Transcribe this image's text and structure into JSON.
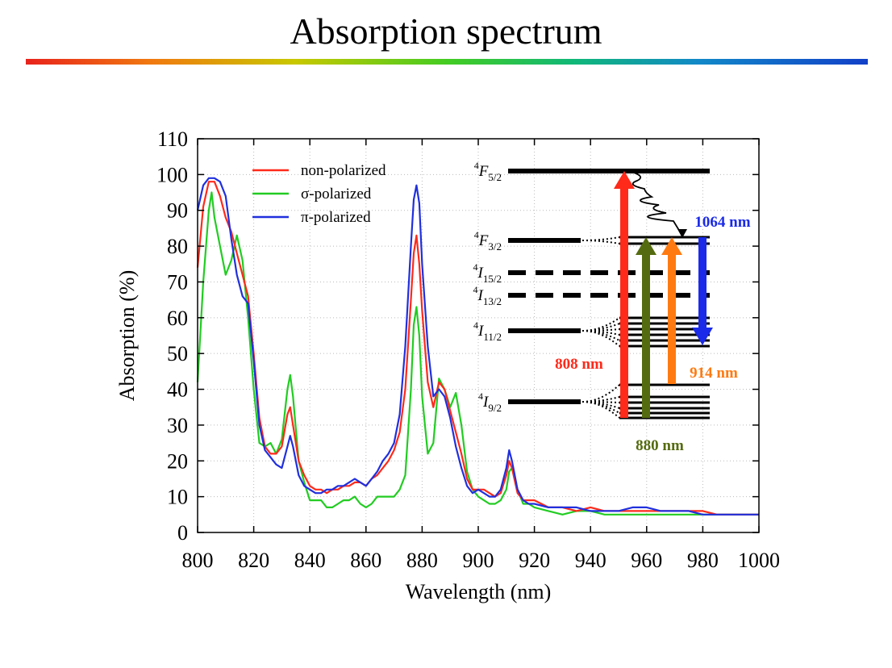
{
  "slide": {
    "title": "Absorption spectrum",
    "accent_colors": [
      "#e8231c",
      "#f07a10",
      "#44cc22",
      "#1288c8",
      "#1240c8"
    ]
  },
  "chart_data": {
    "type": "line",
    "xlabel": "Wavelength (nm)",
    "ylabel": "Absorption (%)",
    "xlim": [
      800,
      1000
    ],
    "ylim": [
      0,
      110
    ],
    "xticks": [
      800,
      820,
      840,
      860,
      880,
      900,
      920,
      940,
      960,
      980,
      1000
    ],
    "yticks": [
      0,
      10,
      20,
      30,
      40,
      50,
      60,
      70,
      80,
      90,
      100,
      110
    ],
    "grid": true,
    "legend_position": "top-left",
    "series": [
      {
        "name": "non-polarized",
        "color": "#ff2a1a",
        "x": [
          800,
          802,
          804,
          806,
          808,
          810,
          812,
          814,
          816,
          818,
          820,
          822,
          824,
          826,
          828,
          830,
          832,
          833,
          834,
          836,
          838,
          840,
          842,
          844,
          846,
          848,
          850,
          852,
          854,
          856,
          858,
          860,
          862,
          864,
          866,
          868,
          870,
          872,
          874,
          876,
          877,
          878,
          879,
          880,
          882,
          884,
          886,
          888,
          890,
          892,
          894,
          896,
          898,
          900,
          902,
          904,
          906,
          908,
          910,
          911,
          912,
          914,
          916,
          918,
          920,
          925,
          930,
          935,
          940,
          945,
          950,
          955,
          960,
          965,
          970,
          975,
          980,
          985,
          990,
          995,
          1000
        ],
        "y": [
          74,
          91,
          98,
          98,
          94,
          88,
          84,
          78,
          72,
          66,
          50,
          32,
          24,
          22,
          22,
          24,
          33,
          35,
          30,
          20,
          16,
          13,
          12,
          12,
          11,
          12,
          12,
          13,
          13,
          14,
          14,
          13,
          15,
          16,
          18,
          20,
          23,
          28,
          40,
          65,
          78,
          83,
          75,
          62,
          42,
          35,
          42,
          40,
          34,
          28,
          22,
          15,
          12,
          12,
          12,
          11,
          10,
          11,
          16,
          20,
          18,
          11,
          9,
          9,
          9,
          7,
          7,
          6,
          7,
          6,
          6,
          6,
          6,
          6,
          6,
          6,
          6,
          5,
          5,
          5,
          5
        ]
      },
      {
        "name": "σ-polarized",
        "color": "#22cc22",
        "x": [
          800,
          802,
          804,
          805,
          806,
          808,
          810,
          812,
          814,
          816,
          818,
          820,
          822,
          824,
          826,
          828,
          830,
          832,
          833,
          834,
          836,
          838,
          840,
          842,
          844,
          846,
          848,
          850,
          852,
          854,
          856,
          858,
          860,
          862,
          864,
          866,
          868,
          870,
          872,
          874,
          876,
          877,
          878,
          879,
          880,
          882,
          884,
          886,
          888,
          890,
          892,
          894,
          896,
          898,
          900,
          902,
          904,
          906,
          908,
          910,
          911,
          912,
          914,
          916,
          918,
          920,
          925,
          930,
          935,
          940,
          945,
          950,
          955,
          960,
          965,
          970,
          975,
          980,
          985,
          990,
          995,
          1000
        ],
        "y": [
          42,
          70,
          90,
          95,
          88,
          80,
          72,
          76,
          83,
          76,
          60,
          40,
          25,
          24,
          25,
          22,
          26,
          40,
          44,
          38,
          20,
          14,
          9,
          9,
          9,
          7,
          7,
          8,
          9,
          9,
          10,
          8,
          7,
          8,
          10,
          10,
          10,
          10,
          12,
          16,
          40,
          58,
          63,
          55,
          38,
          22,
          25,
          43,
          40,
          35,
          39,
          30,
          17,
          12,
          10,
          9,
          8,
          8,
          9,
          12,
          17,
          18,
          12,
          8,
          8,
          7,
          6,
          5,
          6,
          6,
          5,
          5,
          5,
          5,
          5,
          5,
          5,
          5,
          5,
          5,
          5,
          5
        ]
      },
      {
        "name": "π-polarized",
        "color": "#2030dd",
        "x": [
          800,
          802,
          804,
          806,
          808,
          810,
          812,
          814,
          816,
          818,
          820,
          822,
          824,
          826,
          828,
          830,
          832,
          833,
          834,
          836,
          838,
          840,
          842,
          844,
          846,
          848,
          850,
          852,
          854,
          856,
          858,
          860,
          862,
          864,
          866,
          868,
          870,
          872,
          874,
          876,
          877,
          878,
          879,
          880,
          882,
          884,
          886,
          888,
          890,
          892,
          894,
          896,
          898,
          900,
          902,
          904,
          906,
          908,
          910,
          911,
          912,
          914,
          916,
          918,
          920,
          925,
          930,
          935,
          940,
          945,
          950,
          955,
          960,
          965,
          970,
          975,
          980,
          985,
          990,
          995,
          1000
        ],
        "y": [
          90,
          97,
          99,
          99,
          98,
          94,
          82,
          72,
          66,
          64,
          48,
          30,
          23,
          21,
          19,
          18,
          24,
          27,
          24,
          16,
          13,
          12,
          11,
          11,
          12,
          12,
          13,
          13,
          14,
          15,
          14,
          13,
          15,
          17,
          20,
          22,
          25,
          33,
          52,
          80,
          93,
          97,
          92,
          75,
          52,
          38,
          40,
          38,
          32,
          24,
          18,
          13,
          11,
          12,
          11,
          10,
          10,
          12,
          18,
          23,
          20,
          12,
          9,
          8,
          8,
          7,
          7,
          7,
          6,
          6,
          6,
          7,
          7,
          6,
          6,
          6,
          5,
          5,
          5,
          5,
          5
        ]
      }
    ],
    "inset": {
      "levels": [
        {
          "label": "4F5/2",
          "term": "F",
          "sup": "4",
          "sub": "5/2"
        },
        {
          "label": "4F3/2",
          "term": "F",
          "sup": "4",
          "sub": "3/2"
        },
        {
          "label": "4I15/2",
          "term": "I",
          "sup": "4",
          "sub": "15/2"
        },
        {
          "label": "4I13/2",
          "term": "I",
          "sup": "4",
          "sub": "13/2"
        },
        {
          "label": "4I11/2",
          "term": "I",
          "sup": "4",
          "sub": "11/2"
        },
        {
          "label": "4I9/2",
          "term": "I",
          "sup": "4",
          "sub": "9/2"
        }
      ],
      "transitions": [
        {
          "label": "808 nm",
          "color": "#ff2a1a"
        },
        {
          "label": "880 nm",
          "color": "#556b10"
        },
        {
          "label": "914 nm",
          "color": "#ff7a10"
        },
        {
          "label": "1064 nm",
          "color": "#1a2ae8"
        }
      ]
    }
  }
}
